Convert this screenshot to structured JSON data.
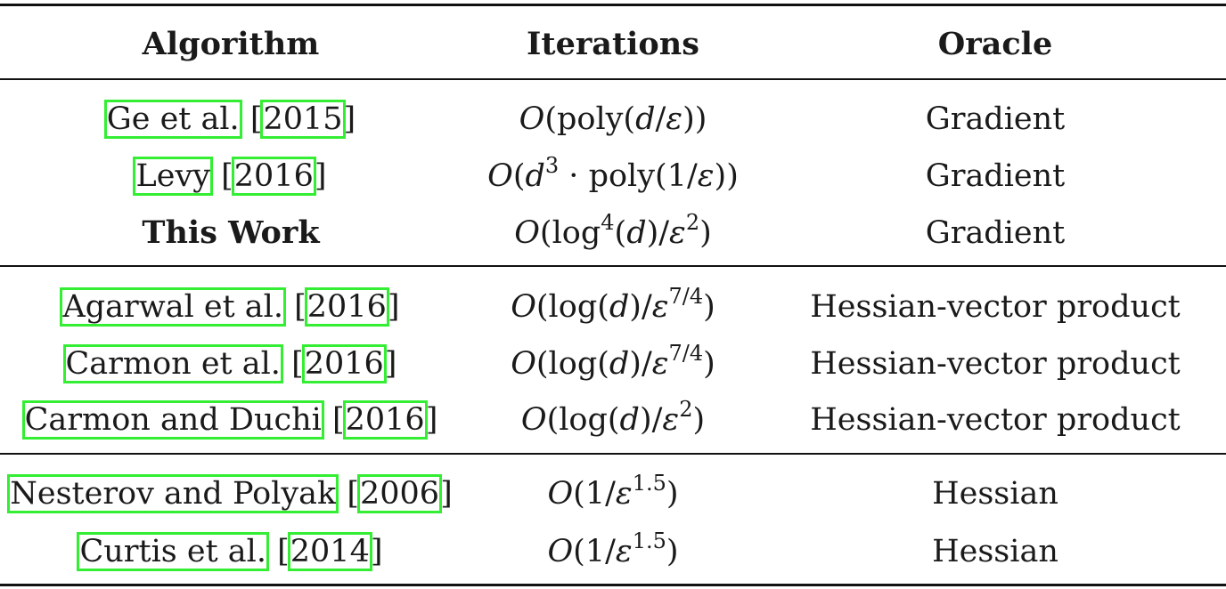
{
  "headers": {
    "algorithm": "Algorithm",
    "iterations": "Iterations",
    "oracle": "Oracle"
  },
  "rows": [
    {
      "author": "Ge et al.",
      "year": "2015",
      "iterations": "O(poly(d/ε))",
      "oracle": "Gradient"
    },
    {
      "author": "Levy",
      "year": "2016",
      "iterations": "O(d^3 · poly(1/ε))",
      "oracle": "Gradient"
    },
    {
      "author": "This Work",
      "year": "",
      "iterations": "O(log^4(d)/ε^2)",
      "oracle": "Gradient"
    },
    {
      "author": "Agarwal et al.",
      "year": "2016",
      "iterations": "O(log(d)/ε^{7/4})",
      "oracle": "Hessian-vector product"
    },
    {
      "author": "Carmon et al.",
      "year": "2016",
      "iterations": "O(log(d)/ε^{7/4})",
      "oracle": "Hessian-vector product"
    },
    {
      "author": "Carmon and Duchi",
      "year": "2016",
      "iterations": "O(log(d)/ε^2)",
      "oracle": "Hessian-vector product"
    },
    {
      "author": "Nesterov and Polyak",
      "year": "2006",
      "iterations": "O(1/ε^{1.5})",
      "oracle": "Hessian"
    },
    {
      "author": "Curtis et al.",
      "year": "2014",
      "iterations": "O(1/ε^{1.5})",
      "oracle": "Hessian"
    }
  ],
  "math": {
    "O": "O",
    "lp": "(",
    "rp": ")",
    "poly": "poly",
    "log": "log",
    "d": "d",
    "eps": "ε",
    "slash": "/",
    "one": "1",
    "cdot": " · ",
    "sup3": "3",
    "sup4": "4",
    "sup2": "2",
    "sup74": "7/4",
    "sup15": "1.5"
  },
  "punct": {
    "open": " [",
    "close": "]"
  }
}
